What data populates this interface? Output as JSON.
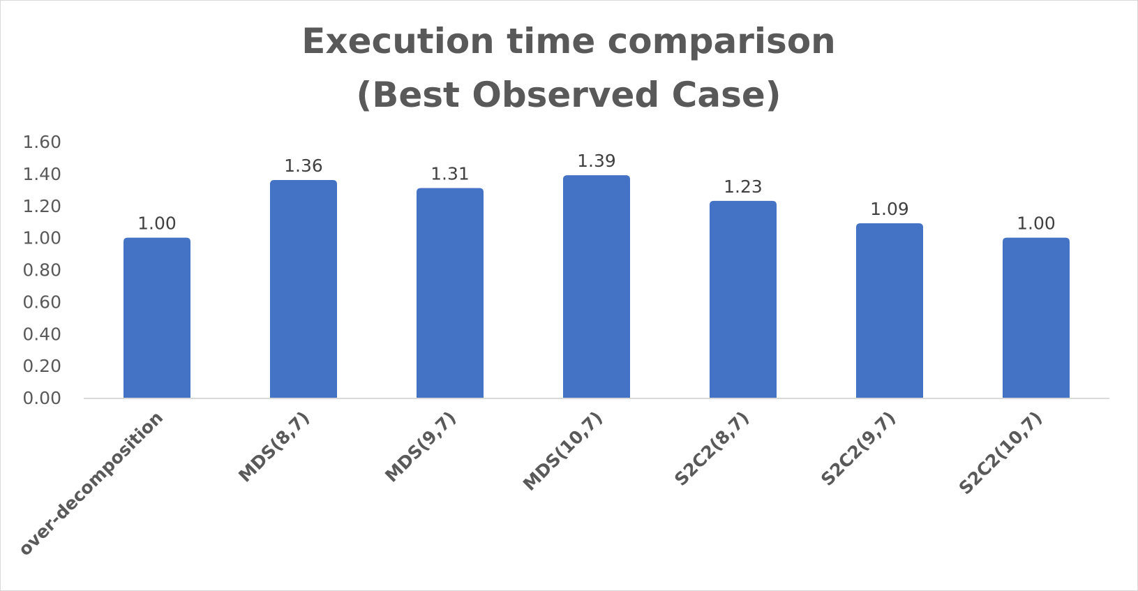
{
  "chart_data": {
    "type": "bar",
    "title_lines": [
      "Execution time comparison",
      "(Best Observed Case)"
    ],
    "categories": [
      "over-decomposition",
      "MDS(8,7)",
      "MDS(9,7)",
      "MDS(10,7)",
      "S2C2(8,7)",
      "S2C2(9,7)",
      "S2C2(10,7)"
    ],
    "values": [
      1.0,
      1.36,
      1.31,
      1.39,
      1.23,
      1.09,
      1.0
    ],
    "value_labels": [
      "1.00",
      "1.36",
      "1.31",
      "1.39",
      "1.23",
      "1.09",
      "1.00"
    ],
    "y_ticks": [
      "0.00",
      "0.20",
      "0.40",
      "0.60",
      "0.80",
      "1.00",
      "1.20",
      "1.40",
      "1.60"
    ],
    "ylim": [
      0,
      1.6
    ],
    "xlabel": "",
    "ylabel": "",
    "grid": false,
    "legend": "none",
    "bar_color": "#4472C4",
    "axis_color": "#d9d9d9",
    "text_color": "#595959"
  }
}
